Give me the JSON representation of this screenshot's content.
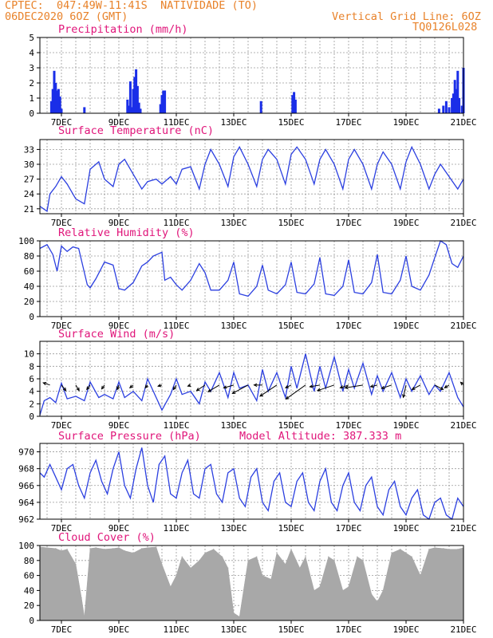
{
  "header": {
    "left_line1": "CPTEC:  047:49W-11:41S  NATIVIDADE (TO)",
    "left_line2": "06DEC2020 6OZ (GMT)",
    "right_line1": "Vertical Grid Line: 6OZ",
    "right_line2": "TQ0126L028"
  },
  "colors": {
    "header_text": "#e8822a",
    "title_text": "#e0157a",
    "series_line": "#2b3fe0",
    "precip_bars": "#1a2ee8",
    "cloud_fill": "#a8a8a8",
    "wind_arrows": "#000000"
  },
  "x_axis": {
    "tick_labels": [
      "7DEC",
      "9DEC",
      "11DEC",
      "13DEC",
      "15DEC",
      "17DEC",
      "19DEC",
      "21DEC"
    ],
    "tick_days": [
      7,
      9,
      11,
      13,
      15,
      17,
      19,
      21
    ],
    "range_days": [
      6.25,
      21.0
    ],
    "vertical_grid_interval_days": 0.5
  },
  "chart_data": [
    {
      "type": "bar",
      "title": "Precipitation (mm/h)",
      "ylim": [
        0,
        5
      ],
      "yticks": [
        0,
        1,
        2,
        3,
        4,
        5
      ],
      "grid": true,
      "x": [
        6.65,
        6.7,
        6.75,
        6.8,
        6.85,
        6.9,
        6.95,
        7.0,
        7.8,
        9.3,
        9.35,
        9.4,
        9.45,
        9.5,
        9.55,
        9.6,
        9.65,
        9.7,
        9.75,
        10.45,
        10.5,
        10.55,
        10.6,
        13.95,
        15.05,
        15.1,
        15.15,
        20.15,
        20.3,
        20.4,
        20.5,
        20.6,
        20.65,
        20.7,
        20.75,
        20.8,
        20.85,
        20.95,
        21.0
      ],
      "values": [
        0.8,
        1.6,
        2.8,
        2.0,
        1.5,
        1.6,
        1.1,
        0.3,
        0.4,
        0.9,
        0.5,
        2.1,
        0.4,
        1.6,
        2.4,
        2.9,
        1.8,
        0.7,
        0.3,
        0.6,
        1.2,
        1.5,
        1.5,
        0.8,
        1.2,
        1.4,
        0.9,
        0.3,
        0.5,
        0.8,
        0.4,
        1.0,
        1.3,
        2.2,
        1.6,
        2.8,
        1.0,
        0.5,
        3.0
      ]
    },
    {
      "type": "line",
      "title": "Surface Temperature (nC)",
      "ylim": [
        20,
        35
      ],
      "yticks": [
        21,
        24,
        27,
        30,
        33
      ],
      "grid": true,
      "x": [
        6.25,
        6.5,
        6.6,
        6.8,
        7.0,
        7.2,
        7.5,
        7.8,
        8.0,
        8.3,
        8.5,
        8.8,
        9.0,
        9.2,
        9.5,
        9.8,
        10.0,
        10.3,
        10.5,
        10.8,
        11.0,
        11.2,
        11.5,
        11.8,
        12.0,
        12.2,
        12.5,
        12.8,
        13.0,
        13.2,
        13.5,
        13.8,
        14.0,
        14.2,
        14.5,
        14.8,
        15.0,
        15.2,
        15.5,
        15.8,
        16.0,
        16.2,
        16.5,
        16.8,
        17.0,
        17.2,
        17.5,
        17.8,
        18.0,
        18.2,
        18.5,
        18.8,
        19.0,
        19.2,
        19.5,
        19.8,
        20.0,
        20.2,
        20.5,
        20.8,
        21.0
      ],
      "values": [
        21.5,
        20.5,
        24,
        25.5,
        27.5,
        26,
        23,
        22,
        29,
        30.5,
        27,
        25.5,
        30,
        31,
        28,
        25,
        26.5,
        27,
        26,
        27.5,
        26,
        29,
        29.5,
        25,
        30,
        33,
        30,
        25.5,
        31.5,
        33.5,
        30,
        25.5,
        31,
        33,
        31,
        26,
        32,
        33.5,
        31,
        26,
        31,
        33,
        30,
        25,
        31,
        33,
        30,
        25,
        30,
        32.5,
        30,
        25,
        30.5,
        33.5,
        30,
        25,
        28,
        30,
        27.5,
        25,
        27
      ]
    },
    {
      "type": "line",
      "title": "Relative Humidity (%)",
      "ylim": [
        0,
        100
      ],
      "yticks": [
        0,
        20,
        40,
        60,
        80,
        100
      ],
      "grid": true,
      "x": [
        6.25,
        6.5,
        6.7,
        6.85,
        7.0,
        7.2,
        7.4,
        7.6,
        7.9,
        8.0,
        8.2,
        8.5,
        8.8,
        9.0,
        9.2,
        9.5,
        9.8,
        10.0,
        10.2,
        10.5,
        10.6,
        10.8,
        11.0,
        11.2,
        11.5,
        11.8,
        12.0,
        12.2,
        12.5,
        12.8,
        13.0,
        13.2,
        13.5,
        13.8,
        14.0,
        14.2,
        14.5,
        14.8,
        15.0,
        15.2,
        15.5,
        15.8,
        16.0,
        16.2,
        16.5,
        16.8,
        17.0,
        17.2,
        17.5,
        17.8,
        18.0,
        18.2,
        18.5,
        18.8,
        19.0,
        19.2,
        19.5,
        19.8,
        20.0,
        20.2,
        20.4,
        20.6,
        20.8,
        21.0
      ],
      "values": [
        90,
        95,
        82,
        60,
        93,
        86,
        92,
        90,
        42,
        38,
        50,
        72,
        68,
        37,
        35,
        45,
        67,
        72,
        80,
        85,
        48,
        52,
        42,
        35,
        48,
        70,
        58,
        35,
        35,
        48,
        72,
        30,
        27,
        40,
        68,
        35,
        30,
        42,
        72,
        32,
        30,
        43,
        78,
        30,
        28,
        40,
        75,
        32,
        30,
        45,
        82,
        32,
        30,
        48,
        80,
        40,
        35,
        55,
        78,
        100,
        95,
        70,
        65,
        80
      ]
    },
    {
      "type": "line",
      "title": "Surface Wind (m/s)",
      "ylim": [
        0,
        12
      ],
      "yticks": [
        0,
        2,
        4,
        6,
        8,
        10
      ],
      "grid": true,
      "x": [
        6.25,
        6.4,
        6.6,
        6.8,
        7.0,
        7.2,
        7.5,
        7.8,
        8.0,
        8.3,
        8.5,
        8.8,
        9.0,
        9.2,
        9.5,
        9.8,
        10.0,
        10.3,
        10.5,
        10.8,
        11.0,
        11.2,
        11.5,
        11.8,
        12.0,
        12.2,
        12.5,
        12.8,
        13.0,
        13.2,
        13.5,
        13.8,
        14.0,
        14.2,
        14.5,
        14.8,
        15.0,
        15.2,
        15.5,
        15.8,
        16.0,
        16.2,
        16.5,
        16.8,
        17.0,
        17.2,
        17.5,
        17.8,
        18.0,
        18.2,
        18.5,
        18.8,
        19.0,
        19.2,
        19.5,
        19.8,
        20.0,
        20.2,
        20.5,
        20.8,
        21.0
      ],
      "values": [
        0.2,
        2.5,
        3,
        2.2,
        5.3,
        2.8,
        3.2,
        2.5,
        5.5,
        3,
        3.5,
        2.8,
        5.5,
        3,
        4,
        2.5,
        6,
        3,
        1,
        3.5,
        6,
        3.5,
        4,
        2,
        5.5,
        4,
        7,
        3,
        7,
        4.5,
        5,
        2.5,
        7.5,
        4,
        7,
        3,
        8,
        4.5,
        10,
        4,
        8,
        4.5,
        9.5,
        4,
        7.5,
        4.5,
        8.5,
        3.5,
        6.5,
        4,
        7,
        3,
        6,
        4,
        6.5,
        3.5,
        5,
        4,
        7,
        3,
        1.5
      ],
      "arrows": {
        "x": [
          6.6,
          7.0,
          7.5,
          8.0,
          8.5,
          9.0,
          9.5,
          10.0,
          10.5,
          11.0,
          11.5,
          12.0,
          12.5,
          13.0,
          13.5,
          14.0,
          14.5,
          15.0,
          15.5,
          16.0,
          16.5,
          17.0,
          17.5,
          18.0,
          18.5,
          19.0,
          19.5,
          20.0,
          20.5,
          21.0
        ],
        "u": [
          -1.2,
          0.8,
          0.6,
          -0.6,
          -0.5,
          -0.3,
          -0.6,
          -0.4,
          -0.7,
          -0.5,
          -0.5,
          -1.5,
          -2.0,
          -1.8,
          -2.8,
          -1.5,
          -3.0,
          -1.0,
          -3.5,
          -1.8,
          -3.0,
          -1.5,
          -3.2,
          -1.2,
          -1.8,
          -0.5,
          -1.5,
          1.5,
          -0.8,
          -0.5
        ],
        "v": [
          0.4,
          -1.0,
          -1.0,
          -0.8,
          -0.7,
          -0.8,
          -0.5,
          -0.5,
          -0.2,
          -0.8,
          -0.2,
          -1.0,
          -1.2,
          -0.5,
          -1.5,
          0.0,
          -2.0,
          -0.5,
          -2.5,
          -0.3,
          -1.0,
          -0.5,
          -0.5,
          -0.3,
          -0.6,
          -2.2,
          -0.8,
          -0.8,
          -0.5,
          0.5
        ]
      }
    },
    {
      "type": "line",
      "title": "Surface Pressure (hPa)",
      "annotation": "Model Altitude: 387.333 m",
      "ylim": [
        962,
        971
      ],
      "yticks": [
        962,
        964,
        966,
        968,
        970
      ],
      "grid": true,
      "x": [
        6.25,
        6.4,
        6.6,
        6.8,
        7.0,
        7.2,
        7.4,
        7.6,
        7.8,
        8.0,
        8.2,
        8.4,
        8.6,
        8.8,
        9.0,
        9.2,
        9.4,
        9.6,
        9.8,
        10.0,
        10.2,
        10.4,
        10.6,
        10.8,
        11.0,
        11.2,
        11.4,
        11.6,
        11.8,
        12.0,
        12.2,
        12.4,
        12.6,
        12.8,
        13.0,
        13.2,
        13.4,
        13.6,
        13.8,
        14.0,
        14.2,
        14.4,
        14.6,
        14.8,
        15.0,
        15.2,
        15.4,
        15.6,
        15.8,
        16.0,
        16.2,
        16.4,
        16.6,
        16.8,
        17.0,
        17.2,
        17.4,
        17.6,
        17.8,
        18.0,
        18.2,
        18.4,
        18.6,
        18.8,
        19.0,
        19.2,
        19.4,
        19.6,
        19.8,
        20.0,
        20.2,
        20.4,
        20.6,
        20.8,
        21.0
      ],
      "values": [
        967.5,
        967,
        968.5,
        967,
        965.5,
        968,
        968.5,
        966,
        964.5,
        967.5,
        969,
        966.5,
        965,
        968,
        970,
        966,
        964.5,
        968,
        970.5,
        966,
        964,
        968.5,
        969.5,
        965,
        964.5,
        967.5,
        969,
        965,
        964.5,
        968,
        968.5,
        965,
        964,
        967.5,
        968,
        964.5,
        963.5,
        967,
        968,
        964,
        963,
        966.5,
        967.5,
        964,
        963.5,
        966.5,
        967.5,
        964,
        963,
        966.5,
        968,
        964,
        963,
        966,
        967.5,
        964,
        963,
        966,
        967,
        963.5,
        962.5,
        965.5,
        966.5,
        963.5,
        962.5,
        964.5,
        965.5,
        962.5,
        962,
        964,
        964.5,
        962.5,
        962,
        964.5,
        963.5
      ]
    },
    {
      "type": "area",
      "title": "Cloud Cover (%)",
      "ylim": [
        0,
        100
      ],
      "yticks": [
        0,
        20,
        40,
        60,
        80,
        100
      ],
      "grid": true,
      "x": [
        6.25,
        6.5,
        6.8,
        7.0,
        7.2,
        7.5,
        7.7,
        7.8,
        8.0,
        8.2,
        8.5,
        8.8,
        9.0,
        9.2,
        9.5,
        9.8,
        10.0,
        10.3,
        10.5,
        10.8,
        11.0,
        11.2,
        11.5,
        11.8,
        12.0,
        12.3,
        12.6,
        12.8,
        13.0,
        13.2,
        13.5,
        13.8,
        14.0,
        14.3,
        14.5,
        14.8,
        15.0,
        15.3,
        15.5,
        15.8,
        16.0,
        16.3,
        16.5,
        16.8,
        17.0,
        17.3,
        17.5,
        17.8,
        18.0,
        18.2,
        18.5,
        18.8,
        19.0,
        19.2,
        19.5,
        19.8,
        20.0,
        20.3,
        20.5,
        20.8,
        21.0
      ],
      "values": [
        98,
        97,
        96,
        93,
        95,
        75,
        30,
        5,
        96,
        97,
        95,
        96,
        97,
        93,
        90,
        96,
        97,
        98,
        75,
        45,
        60,
        85,
        70,
        80,
        90,
        95,
        85,
        70,
        10,
        5,
        80,
        85,
        60,
        55,
        90,
        75,
        95,
        70,
        85,
        40,
        45,
        85,
        80,
        40,
        45,
        85,
        80,
        35,
        25,
        40,
        90,
        95,
        90,
        85,
        60,
        95,
        97,
        96,
        95,
        95,
        97
      ]
    }
  ],
  "panel_titles": {
    "precip": "Precipitation (mm/h)",
    "temp": "Surface Temperature (nC)",
    "rh": "Relative Humidity (%)",
    "wind": "Surface Wind (m/s)",
    "pres": "Surface Pressure (hPa)",
    "pres_annotation": "Model Altitude: 387.333 m",
    "cloud": "Cloud Cover (%)"
  }
}
